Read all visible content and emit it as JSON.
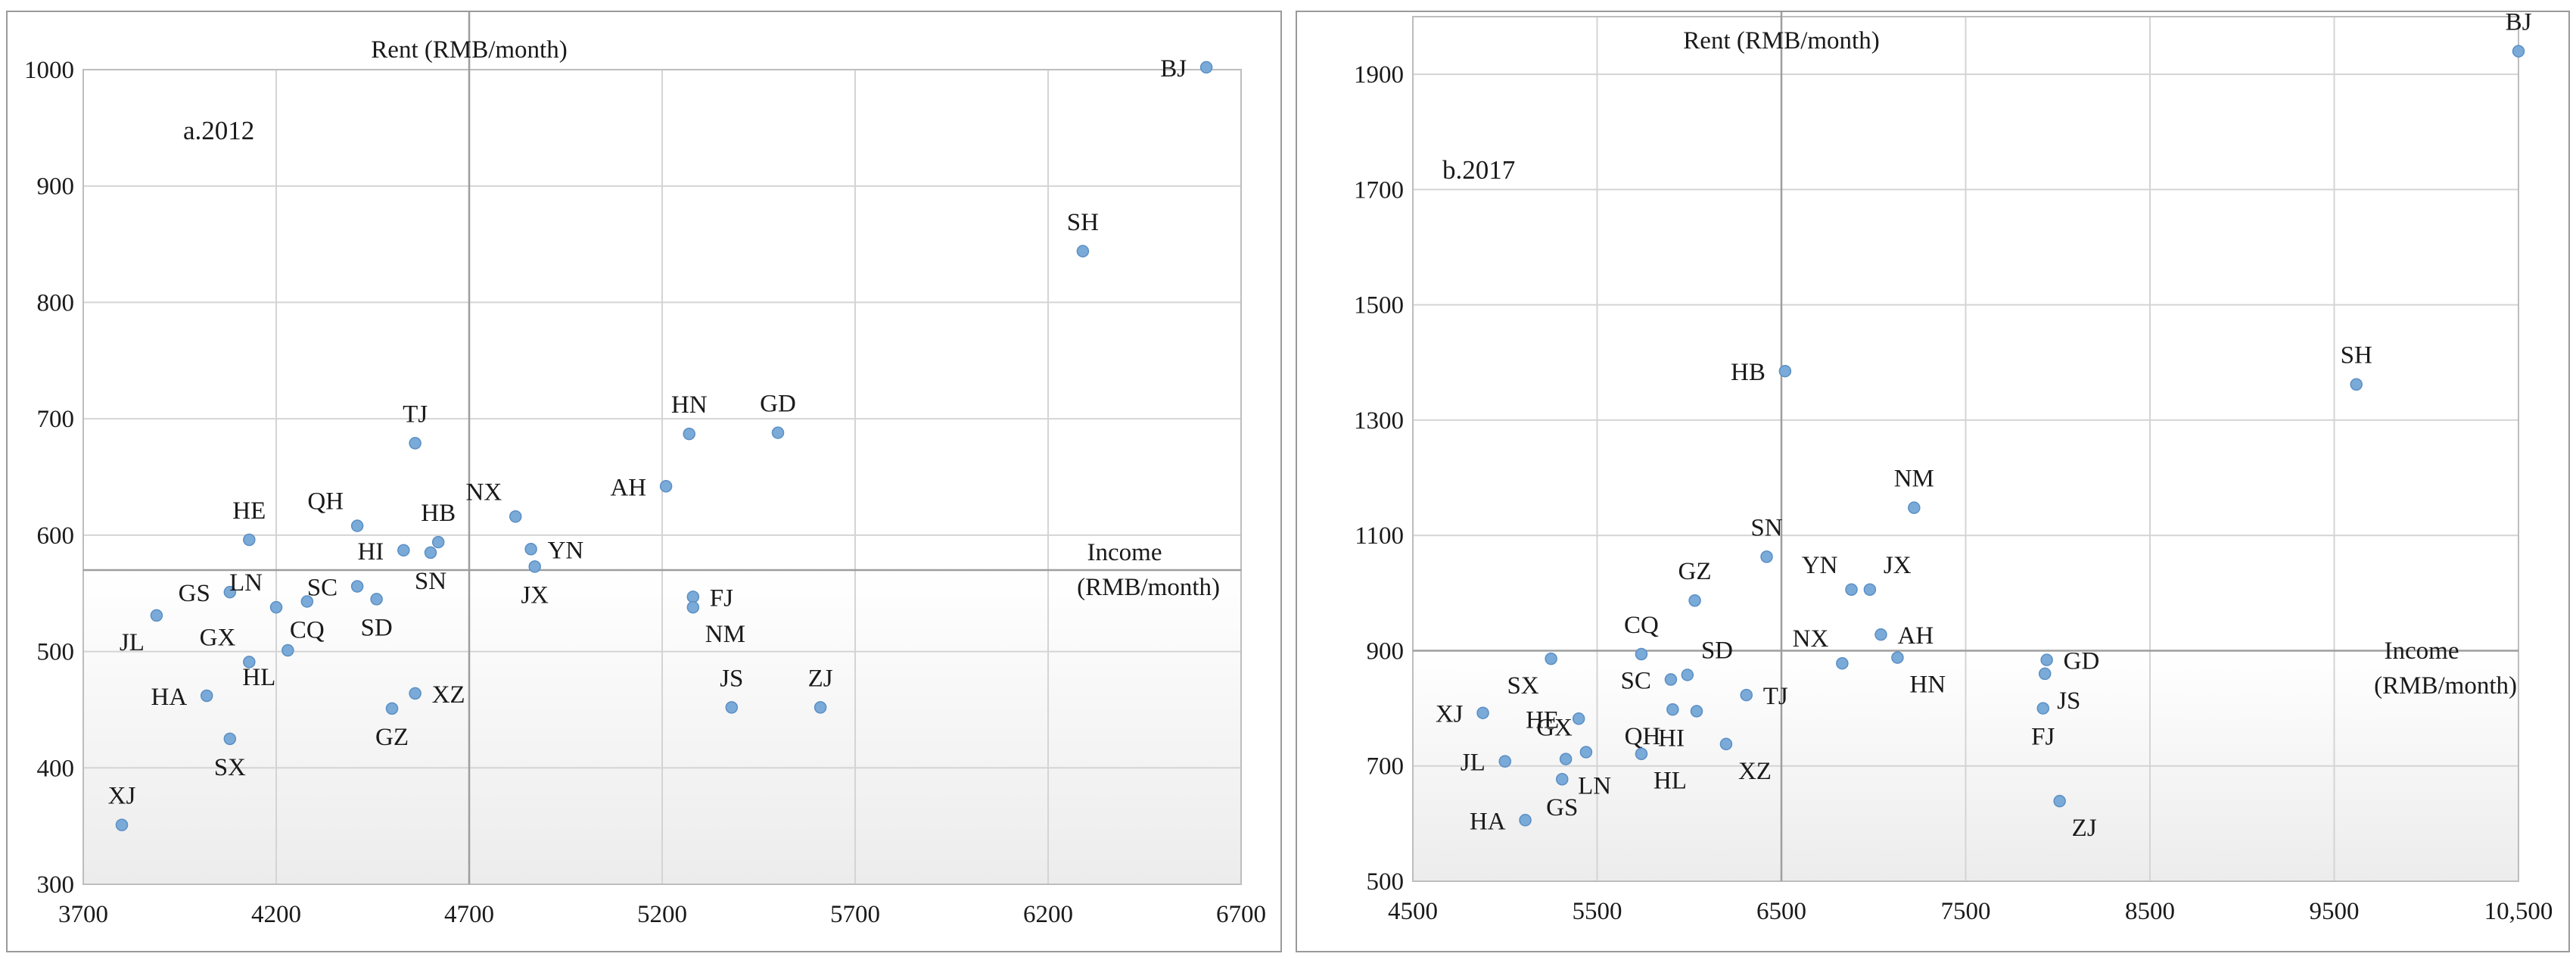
{
  "chart_data": [
    {
      "type": "scatter",
      "panel_label": "a.2012",
      "xlabel": "Income (RMB/month)",
      "xlabel_lines": [
        "Income",
        "(RMB/month)"
      ],
      "ylabel": "Rent (RMB/month)",
      "xlim": [
        3700,
        6700
      ],
      "ylim": [
        300,
        1000
      ],
      "x_ticks": [
        3700,
        4200,
        4700,
        5200,
        5700,
        6200,
        6700
      ],
      "x_tick_labels": [
        "3700",
        "4200",
        "4700",
        "5200",
        "5700",
        "6200",
        "6700"
      ],
      "y_ticks": [
        300,
        400,
        500,
        600,
        700,
        800,
        900,
        1000
      ],
      "y_tick_labels": [
        "300",
        "400",
        "500",
        "600",
        "700",
        "800",
        "900",
        "1000"
      ],
      "crosshair": {
        "x": 4700,
        "y": 570
      },
      "grid": true,
      "marker_color": "#7aaad8",
      "points": [
        {
          "label": "BJ",
          "x": 6610,
          "y": 1002,
          "pos": "left"
        },
        {
          "label": "SH",
          "x": 6290,
          "y": 844,
          "pos": "above"
        },
        {
          "label": "TJ",
          "x": 4560,
          "y": 679,
          "pos": "above"
        },
        {
          "label": "HN",
          "x": 5270,
          "y": 687,
          "pos": "above"
        },
        {
          "label": "GD",
          "x": 5500,
          "y": 688,
          "pos": "above"
        },
        {
          "label": "AH",
          "x": 5210,
          "y": 642,
          "pos": "left"
        },
        {
          "label": "HE",
          "x": 4130,
          "y": 596,
          "pos": "above"
        },
        {
          "label": "QH",
          "x": 4410,
          "y": 608,
          "pos": "aboveleft"
        },
        {
          "label": "HB",
          "x": 4620,
          "y": 594,
          "pos": "above"
        },
        {
          "label": "NX",
          "x": 4820,
          "y": 616,
          "pos": "aboveleft"
        },
        {
          "label": "HI",
          "x": 4530,
          "y": 587,
          "pos": "left"
        },
        {
          "label": "SN",
          "x": 4600,
          "y": 585,
          "pos": "below"
        },
        {
          "label": "YN",
          "x": 4860,
          "y": 588,
          "pos": "right"
        },
        {
          "label": "JX",
          "x": 4870,
          "y": 573,
          "pos": "below"
        },
        {
          "label": "GS",
          "x": 4080,
          "y": 551,
          "pos": "left"
        },
        {
          "label": "LN",
          "x": 4200,
          "y": 538,
          "pos": "aboveleft"
        },
        {
          "label": "SC",
          "x": 4410,
          "y": 556,
          "pos": "left"
        },
        {
          "label": "CQ",
          "x": 4280,
          "y": 543,
          "pos": "below"
        },
        {
          "label": "SD",
          "x": 4460,
          "y": 545,
          "pos": "below"
        },
        {
          "label": "JL",
          "x": 3890,
          "y": 531,
          "pos": "belowleft"
        },
        {
          "label": "FJ",
          "x": 5280,
          "y": 547,
          "pos": "right"
        },
        {
          "label": "NM",
          "x": 5280,
          "y": 538,
          "pos": "belowright"
        },
        {
          "label": "GX",
          "x": 4130,
          "y": 491,
          "pos": "aboveleft"
        },
        {
          "label": "HL",
          "x": 4230,
          "y": 501,
          "pos": "belowleft"
        },
        {
          "label": "HA",
          "x": 4020,
          "y": 462,
          "pos": "left"
        },
        {
          "label": "XZ",
          "x": 4560,
          "y": 464,
          "pos": "right"
        },
        {
          "label": "GZ",
          "x": 4500,
          "y": 451,
          "pos": "below"
        },
        {
          "label": "JS",
          "x": 5380,
          "y": 452,
          "pos": "above"
        },
        {
          "label": "ZJ",
          "x": 5610,
          "y": 452,
          "pos": "above"
        },
        {
          "label": "SX",
          "x": 4080,
          "y": 425,
          "pos": "below"
        },
        {
          "label": "XJ",
          "x": 3800,
          "y": 351,
          "pos": "above"
        }
      ]
    },
    {
      "type": "scatter",
      "panel_label": "b.2017",
      "xlabel": "Income (RMB/month)",
      "xlabel_lines": [
        "Income",
        "(RMB/month)"
      ],
      "ylabel": "Rent (RMB/month)",
      "xlim": [
        4500,
        10500
      ],
      "ylim": [
        500,
        2000
      ],
      "x_ticks": [
        4500,
        5500,
        6500,
        7500,
        8500,
        9500,
        10500
      ],
      "x_tick_labels": [
        "4500",
        "5500",
        "6500",
        "7500",
        "8500",
        "9500",
        "10,500"
      ],
      "y_ticks": [
        500,
        700,
        900,
        1100,
        1300,
        1500,
        1700,
        1900
      ],
      "y_tick_labels": [
        "500",
        "700",
        "900",
        "1100",
        "1300",
        "1500",
        "1700",
        "1900"
      ],
      "crosshair": {
        "x": 6500,
        "y": 900
      },
      "grid": true,
      "marker_color": "#7aaad8",
      "points": [
        {
          "label": "BJ",
          "x": 10500,
          "y": 1940,
          "pos": "above"
        },
        {
          "label": "SH",
          "x": 9620,
          "y": 1362,
          "pos": "above"
        },
        {
          "label": "HB",
          "x": 6520,
          "y": 1385,
          "pos": "left"
        },
        {
          "label": "NM",
          "x": 7220,
          "y": 1148,
          "pos": "above"
        },
        {
          "label": "SN",
          "x": 6420,
          "y": 1063,
          "pos": "above"
        },
        {
          "label": "YN",
          "x": 6880,
          "y": 1006,
          "pos": "aboveleft"
        },
        {
          "label": "JX",
          "x": 6980,
          "y": 1006,
          "pos": "aboveright"
        },
        {
          "label": "GZ",
          "x": 6030,
          "y": 987,
          "pos": "above"
        },
        {
          "label": "AH",
          "x": 7040,
          "y": 928,
          "pos": "right"
        },
        {
          "label": "CQ",
          "x": 5740,
          "y": 894,
          "pos": "above"
        },
        {
          "label": "NX",
          "x": 6830,
          "y": 878,
          "pos": "aboveleft"
        },
        {
          "label": "HN",
          "x": 7130,
          "y": 888,
          "pos": "belowright"
        },
        {
          "label": "GD",
          "x": 7940,
          "y": 884,
          "pos": "right"
        },
        {
          "label": "JS",
          "x": 7930,
          "y": 860,
          "pos": "belowright"
        },
        {
          "label": "SX",
          "x": 5250,
          "y": 886,
          "pos": "belowleft"
        },
        {
          "label": "SD",
          "x": 5990,
          "y": 858,
          "pos": "aboveright"
        },
        {
          "label": "SC",
          "x": 5900,
          "y": 850,
          "pos": "left"
        },
        {
          "label": "TJ",
          "x": 6310,
          "y": 823,
          "pos": "right"
        },
        {
          "label": "XJ",
          "x": 4880,
          "y": 792,
          "pos": "left"
        },
        {
          "label": "HE",
          "x": 5400,
          "y": 782,
          "pos": "left"
        },
        {
          "label": "QH",
          "x": 5910,
          "y": 798,
          "pos": "belowleft"
        },
        {
          "label": "HI",
          "x": 6040,
          "y": 795,
          "pos": "belowleft"
        },
        {
          "label": "FJ",
          "x": 7920,
          "y": 800,
          "pos": "below"
        },
        {
          "label": "XZ",
          "x": 6200,
          "y": 738,
          "pos": "belowright"
        },
        {
          "label": "HL",
          "x": 5740,
          "y": 721,
          "pos": "belowright"
        },
        {
          "label": "GX",
          "x": 5440,
          "y": 724,
          "pos": "aboveleft"
        },
        {
          "label": "JL",
          "x": 5000,
          "y": 708,
          "pos": "left"
        },
        {
          "label": "LN",
          "x": 5330,
          "y": 712,
          "pos": "belowright"
        },
        {
          "label": "GS",
          "x": 5310,
          "y": 677,
          "pos": "below"
        },
        {
          "label": "ZJ",
          "x": 8010,
          "y": 639,
          "pos": "belowright"
        },
        {
          "label": "HA",
          "x": 5110,
          "y": 606,
          "pos": "left"
        }
      ]
    }
  ]
}
